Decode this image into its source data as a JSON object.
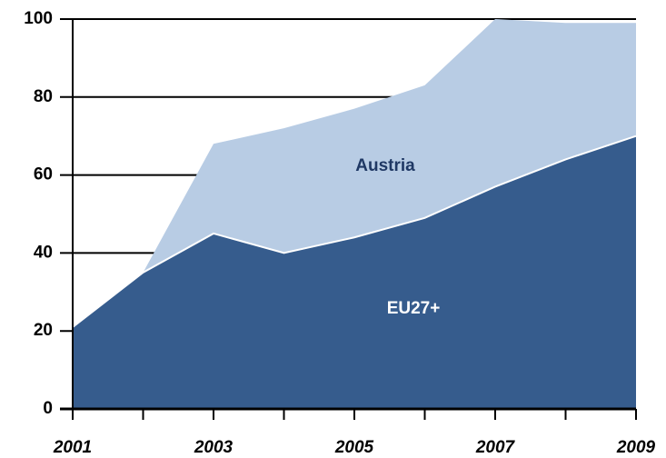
{
  "chart_data": {
    "type": "stacked_area",
    "x": [
      2001,
      2002,
      2003,
      2004,
      2005,
      2006,
      2007,
      2008,
      2009
    ],
    "xlim": [
      2001,
      2009
    ],
    "xticks": [
      2001,
      2003,
      2005,
      2007,
      2009
    ],
    "ylim": [
      0,
      100
    ],
    "yticks": [
      0,
      20,
      40,
      60,
      80,
      100
    ],
    "grid": true,
    "series": [
      {
        "name": "EU27+",
        "color": "#365c8d",
        "values": [
          21,
          35,
          45,
          40,
          44,
          49,
          57,
          64,
          70
        ]
      },
      {
        "name": "Austria",
        "color": "#b8cce4",
        "values": [
          0,
          0,
          23,
          32,
          33,
          34,
          43,
          35,
          29
        ]
      }
    ]
  }
}
